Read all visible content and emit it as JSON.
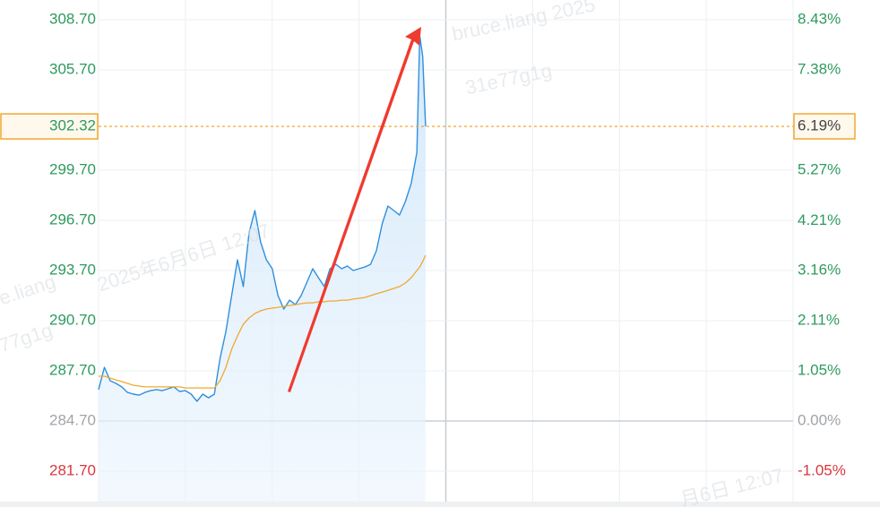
{
  "chart_data": {
    "type": "line",
    "xlim": [
      0,
      240
    ],
    "xticks": [
      0,
      30,
      60,
      90,
      120,
      150,
      180,
      210,
      240
    ],
    "ylim": [
      279.88,
      309.88
    ],
    "yticks": [
      {
        "value": 308.7,
        "label": "308.70"
      },
      {
        "value": 305.7,
        "label": "305.70"
      },
      {
        "value": 299.7,
        "label": "299.70"
      },
      {
        "value": 296.7,
        "label": "296.70"
      },
      {
        "value": 293.7,
        "label": "293.70"
      },
      {
        "value": 290.7,
        "label": "290.70"
      },
      {
        "value": 287.7,
        "label": "287.70"
      },
      {
        "value": 284.7,
        "label": "284.70"
      },
      {
        "value": 281.7,
        "label": "281.70"
      }
    ],
    "y2lim": [
      -1.693,
      8.844
    ],
    "y2ticks": [
      {
        "value": 8.43,
        "label": "8.43%"
      },
      {
        "value": 7.38,
        "label": "7.38%"
      },
      {
        "value": 5.27,
        "label": "5.27%"
      },
      {
        "value": 4.21,
        "label": "4.21%"
      },
      {
        "value": 3.16,
        "label": "3.16%"
      },
      {
        "value": 2.11,
        "label": "2.11%"
      },
      {
        "value": 1.05,
        "label": "1.05%"
      },
      {
        "value": 0,
        "label": "0.00%"
      },
      {
        "value": -1.05,
        "label": "-1.05%"
      }
    ],
    "last_price": {
      "value": 302.32,
      "label": "302.32"
    },
    "last_change": {
      "value": 6.19,
      "label": "6.19%"
    },
    "grid": true,
    "x": [
      0,
      2,
      4,
      6,
      8,
      10,
      12,
      14,
      16,
      18,
      20,
      22,
      24,
      26,
      28,
      30,
      32,
      34,
      36,
      38,
      40,
      42,
      44,
      46,
      48,
      50,
      52,
      54,
      56,
      58,
      60,
      62,
      64,
      66,
      68,
      70,
      72,
      74,
      76,
      78,
      80,
      82,
      84,
      86,
      88,
      90,
      92,
      94,
      96,
      98,
      100,
      102,
      104,
      106,
      108,
      110,
      111,
      112,
      113
    ],
    "series": [
      {
        "name": "price",
        "color": "#2f8fdd",
        "values": [
          286.58,
          287.91,
          287.11,
          286.95,
          286.74,
          286.41,
          286.31,
          286.25,
          286.41,
          286.52,
          286.58,
          286.52,
          286.63,
          286.74,
          286.47,
          286.52,
          286.31,
          285.88,
          286.31,
          286.09,
          286.31,
          288.45,
          290.06,
          292.2,
          294.34,
          292.74,
          295.95,
          297.29,
          295.41,
          294.34,
          293.81,
          292.2,
          291.4,
          291.93,
          291.66,
          292.2,
          293.0,
          293.81,
          293.27,
          292.74,
          293.81,
          294.07,
          293.81,
          293.97,
          293.7,
          293.81,
          293.91,
          294.07,
          294.88,
          296.49,
          297.56,
          297.29,
          297.02,
          297.82,
          298.9,
          300.77,
          307.74,
          306.5,
          302.32
        ]
      },
      {
        "name": "average",
        "color": "#f0a830",
        "values": [
          287.38,
          287.38,
          287.27,
          287.16,
          287.06,
          286.95,
          286.84,
          286.79,
          286.74,
          286.74,
          286.74,
          286.74,
          286.74,
          286.74,
          286.74,
          286.68,
          286.68,
          286.68,
          286.68,
          286.68,
          286.68,
          287.11,
          287.91,
          288.99,
          289.79,
          290.49,
          290.86,
          291.13,
          291.29,
          291.4,
          291.45,
          291.5,
          291.56,
          291.61,
          291.66,
          291.72,
          291.77,
          291.77,
          291.83,
          291.83,
          291.88,
          291.88,
          291.93,
          291.93,
          291.99,
          292.04,
          292.09,
          292.2,
          292.31,
          292.41,
          292.52,
          292.63,
          292.74,
          292.95,
          293.27,
          293.7,
          293.91,
          294.24,
          294.61
        ]
      }
    ],
    "watermarks": [
      "bruce.liang 2025",
      "31e77g1g",
      "2025年6月6日 12:07",
      "e.liang",
      "77g1g",
      "月6日 12:07"
    ]
  }
}
